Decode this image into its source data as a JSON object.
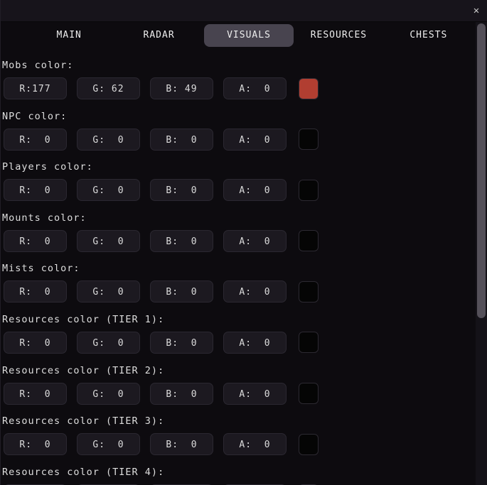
{
  "titlebar": {
    "close_icon": "✕"
  },
  "tabs": [
    {
      "label": "MAIN"
    },
    {
      "label": "RADAR"
    },
    {
      "label": "VISUALS"
    },
    {
      "label": "RESOURCES"
    },
    {
      "label": "CHESTS"
    }
  ],
  "active_tab": "VISUALS",
  "sections": [
    {
      "label": "Mobs color:",
      "fields": [
        "R:177",
        "G: 62",
        "B: 49",
        "A:  0"
      ],
      "swatch": "#B13E31"
    },
    {
      "label": "NPC color:",
      "fields": [
        "R:  0",
        "G:  0",
        "B:  0",
        "A:  0"
      ],
      "swatch": "#050505"
    },
    {
      "label": "Players color:",
      "fields": [
        "R:  0",
        "G:  0",
        "B:  0",
        "A:  0"
      ],
      "swatch": "#050505"
    },
    {
      "label": "Mounts color:",
      "fields": [
        "R:  0",
        "G:  0",
        "B:  0",
        "A:  0"
      ],
      "swatch": "#050505"
    },
    {
      "label": "Mists color:",
      "fields": [
        "R:  0",
        "G:  0",
        "B:  0",
        "A:  0"
      ],
      "swatch": "#050505"
    },
    {
      "label": "Resources color (TIER 1):",
      "fields": [
        "R:  0",
        "G:  0",
        "B:  0",
        "A:  0"
      ],
      "swatch": "#050505"
    },
    {
      "label": "Resources color (TIER 2):",
      "fields": [
        "R:  0",
        "G:  0",
        "B:  0",
        "A:  0"
      ],
      "swatch": "#050505"
    },
    {
      "label": "Resources color (TIER 3):",
      "fields": [
        "R:  0",
        "G:  0",
        "B:  0",
        "A:  0"
      ],
      "swatch": "#050505"
    },
    {
      "label": "Resources color (TIER 4):",
      "fields": [
        "",
        "",
        "",
        ""
      ],
      "swatch": ""
    }
  ],
  "theme": {
    "window_bg": "#0D0B0F",
    "titlebar_bg": "#17141B",
    "field_bg": "#1C1920",
    "tab_active_bg": "#48444F",
    "scrollbar_thumb": "#545059",
    "mobs_swatch": "#B13E31",
    "text": "#DEDEDE"
  }
}
